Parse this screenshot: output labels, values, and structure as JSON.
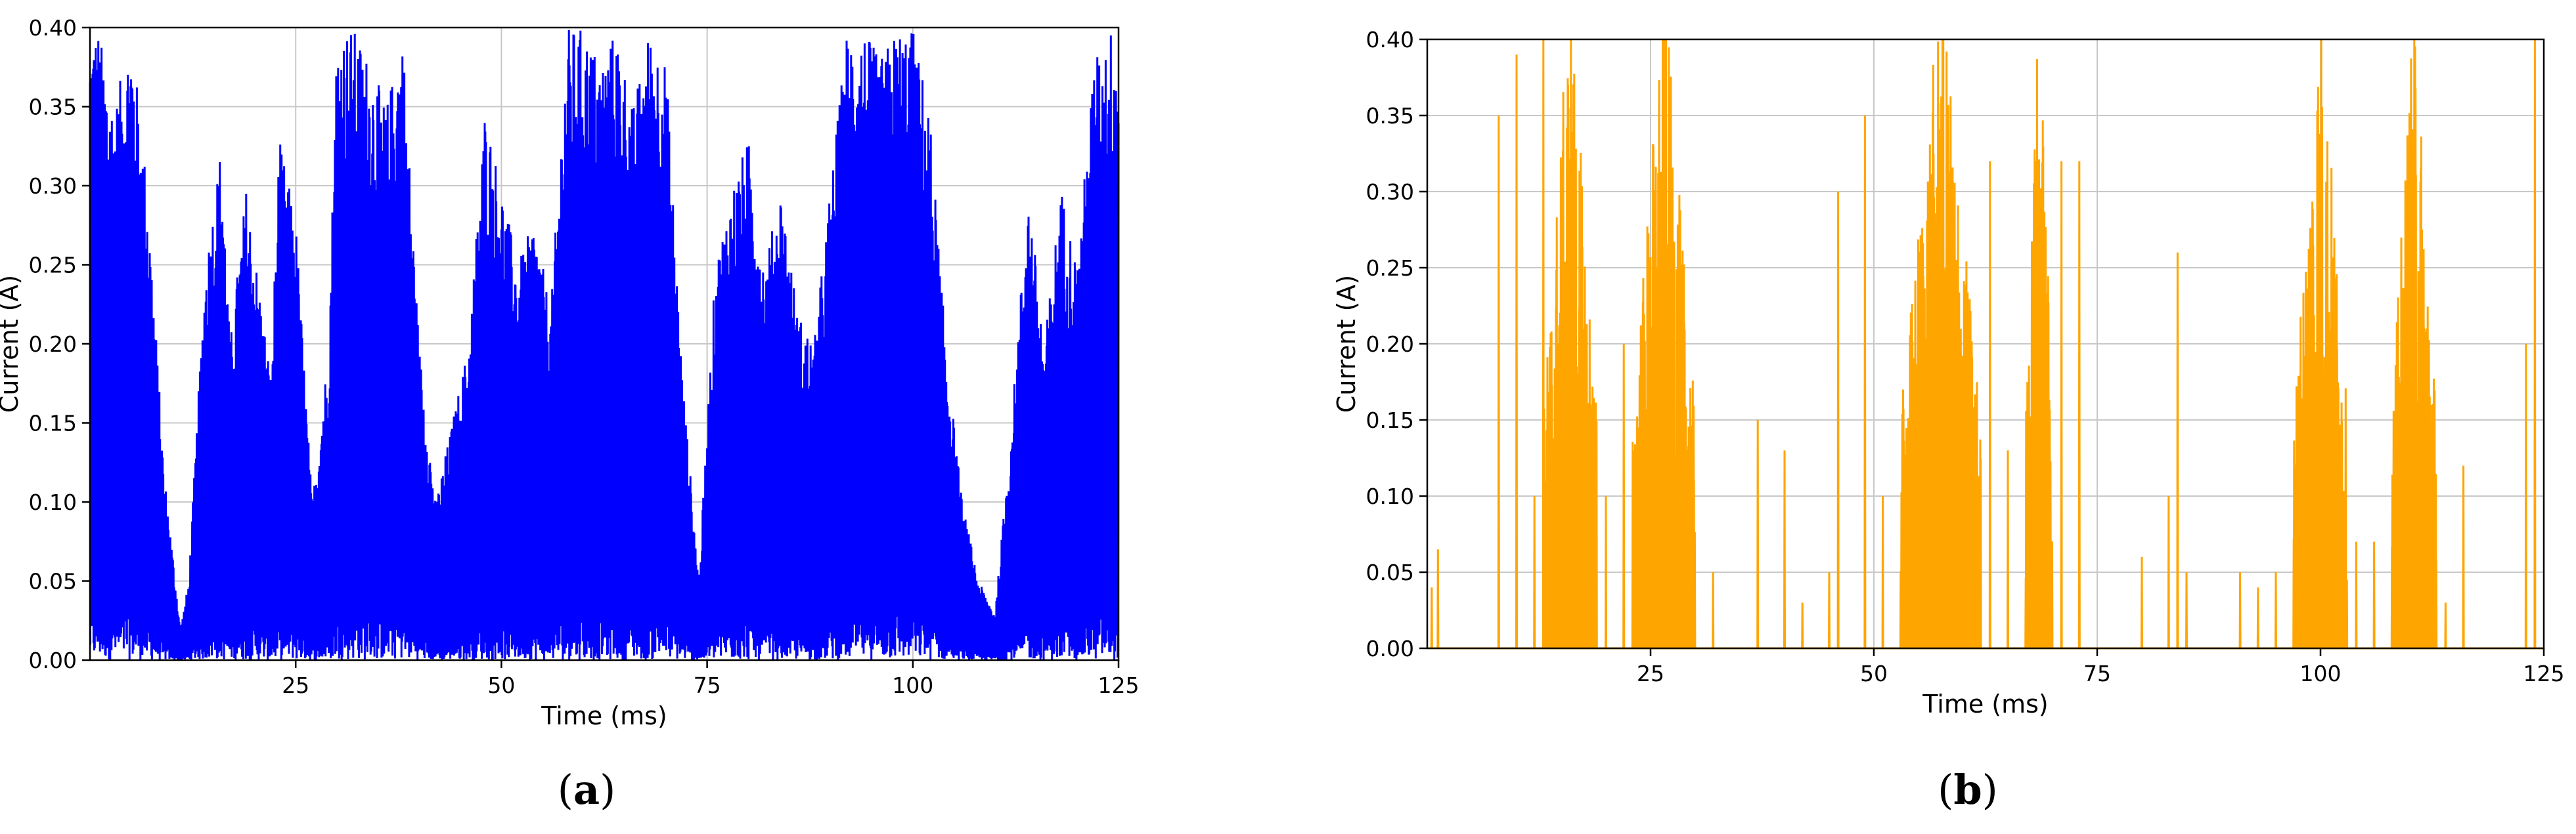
{
  "chart_data": [
    {
      "type": "line",
      "panel_label": "a",
      "xlabel": "Time (ms)",
      "ylabel": "Current (A)",
      "xlim": [
        0,
        125
      ],
      "ylim": [
        0,
        0.4
      ],
      "x_ticks": [
        25,
        50,
        75,
        100,
        125
      ],
      "x_tick_labels": [
        "25",
        "50",
        "75",
        "100",
        "125"
      ],
      "y_ticks": [
        0,
        0.05,
        0.1,
        0.15,
        0.2,
        0.25,
        0.3,
        0.35,
        0.4
      ],
      "y_tick_labels": [
        "0.00",
        "0.05",
        "0.10",
        "0.15",
        "0.20",
        "0.25",
        "0.30",
        "0.35",
        "0.40"
      ],
      "grid": true,
      "color": "#0000ff",
      "envelope_x": [
        0,
        1,
        3,
        5,
        7,
        9,
        11,
        12,
        14,
        16,
        17,
        19,
        22,
        23,
        25,
        27,
        29,
        30,
        32,
        34,
        36,
        38,
        40,
        42,
        44,
        46,
        48,
        50,
        52,
        54,
        56,
        58,
        60,
        62,
        64,
        66,
        68,
        70,
        72,
        74,
        76,
        78,
        80,
        82,
        84,
        86,
        88,
        90,
        92,
        94,
        96,
        98,
        100,
        102,
        104,
        106,
        108,
        110,
        112,
        114,
        116,
        118,
        120,
        122,
        124,
        125
      ],
      "envelope_y": [
        0.4,
        0.4,
        0.35,
        0.4,
        0.3,
        0.12,
        0.02,
        0.05,
        0.25,
        0.33,
        0.2,
        0.3,
        0.18,
        0.33,
        0.28,
        0.1,
        0.2,
        0.4,
        0.4,
        0.38,
        0.35,
        0.4,
        0.2,
        0.1,
        0.15,
        0.2,
        0.35,
        0.3,
        0.25,
        0.28,
        0.22,
        0.4,
        0.4,
        0.38,
        0.4,
        0.35,
        0.4,
        0.38,
        0.18,
        0.05,
        0.25,
        0.3,
        0.33,
        0.25,
        0.3,
        0.22,
        0.2,
        0.3,
        0.4,
        0.4,
        0.38,
        0.4,
        0.4,
        0.35,
        0.2,
        0.1,
        0.05,
        0.03,
        0.15,
        0.3,
        0.2,
        0.3,
        0.25,
        0.38,
        0.4,
        0.4
      ]
    },
    {
      "type": "line",
      "panel_label": "b",
      "xlabel": "Time (ms)",
      "ylabel": "Current (A)",
      "xlim": [
        0,
        125
      ],
      "ylim": [
        0,
        0.4
      ],
      "x_ticks": [
        25,
        50,
        75,
        100,
        125
      ],
      "x_tick_labels": [
        "25",
        "50",
        "75",
        "100",
        "125"
      ],
      "y_ticks": [
        0,
        0.05,
        0.1,
        0.15,
        0.2,
        0.25,
        0.3,
        0.35,
        0.4
      ],
      "y_tick_labels": [
        "0.00",
        "0.05",
        "0.10",
        "0.15",
        "0.20",
        "0.25",
        "0.30",
        "0.35",
        "0.40"
      ],
      "grid": true,
      "color": "#ffa500",
      "bursts": [
        {
          "x_start": 13,
          "x_end": 19,
          "peak": 0.4
        },
        {
          "x_start": 23,
          "x_end": 30,
          "peak": 0.4
        },
        {
          "x_start": 53,
          "x_end": 62,
          "peak": 0.4
        },
        {
          "x_start": 67,
          "x_end": 70,
          "peak": 0.4
        },
        {
          "x_start": 97,
          "x_end": 103,
          "peak": 0.4
        },
        {
          "x_start": 108,
          "x_end": 113,
          "peak": 0.4
        }
      ],
      "spikes": [
        {
          "x": 0.5,
          "y": 0.04
        },
        {
          "x": 1.2,
          "y": 0.065
        },
        {
          "x": 8,
          "y": 0.35
        },
        {
          "x": 10,
          "y": 0.39
        },
        {
          "x": 12,
          "y": 0.1
        },
        {
          "x": 13,
          "y": 0.4
        },
        {
          "x": 20,
          "y": 0.1
        },
        {
          "x": 22,
          "y": 0.2
        },
        {
          "x": 32,
          "y": 0.05
        },
        {
          "x": 37,
          "y": 0.15
        },
        {
          "x": 40,
          "y": 0.13
        },
        {
          "x": 42,
          "y": 0.03
        },
        {
          "x": 45,
          "y": 0.05
        },
        {
          "x": 46,
          "y": 0.3
        },
        {
          "x": 49,
          "y": 0.35
        },
        {
          "x": 51,
          "y": 0.1
        },
        {
          "x": 63,
          "y": 0.32
        },
        {
          "x": 65,
          "y": 0.13
        },
        {
          "x": 71,
          "y": 0.32
        },
        {
          "x": 73,
          "y": 0.32
        },
        {
          "x": 80,
          "y": 0.06
        },
        {
          "x": 83,
          "y": 0.1
        },
        {
          "x": 84,
          "y": 0.26
        },
        {
          "x": 85,
          "y": 0.05
        },
        {
          "x": 91,
          "y": 0.05
        },
        {
          "x": 93,
          "y": 0.04
        },
        {
          "x": 95,
          "y": 0.05
        },
        {
          "x": 104,
          "y": 0.07
        },
        {
          "x": 106,
          "y": 0.07
        },
        {
          "x": 114,
          "y": 0.03
        },
        {
          "x": 116,
          "y": 0.12
        },
        {
          "x": 123,
          "y": 0.2
        },
        {
          "x": 124,
          "y": 0.4
        }
      ]
    }
  ]
}
